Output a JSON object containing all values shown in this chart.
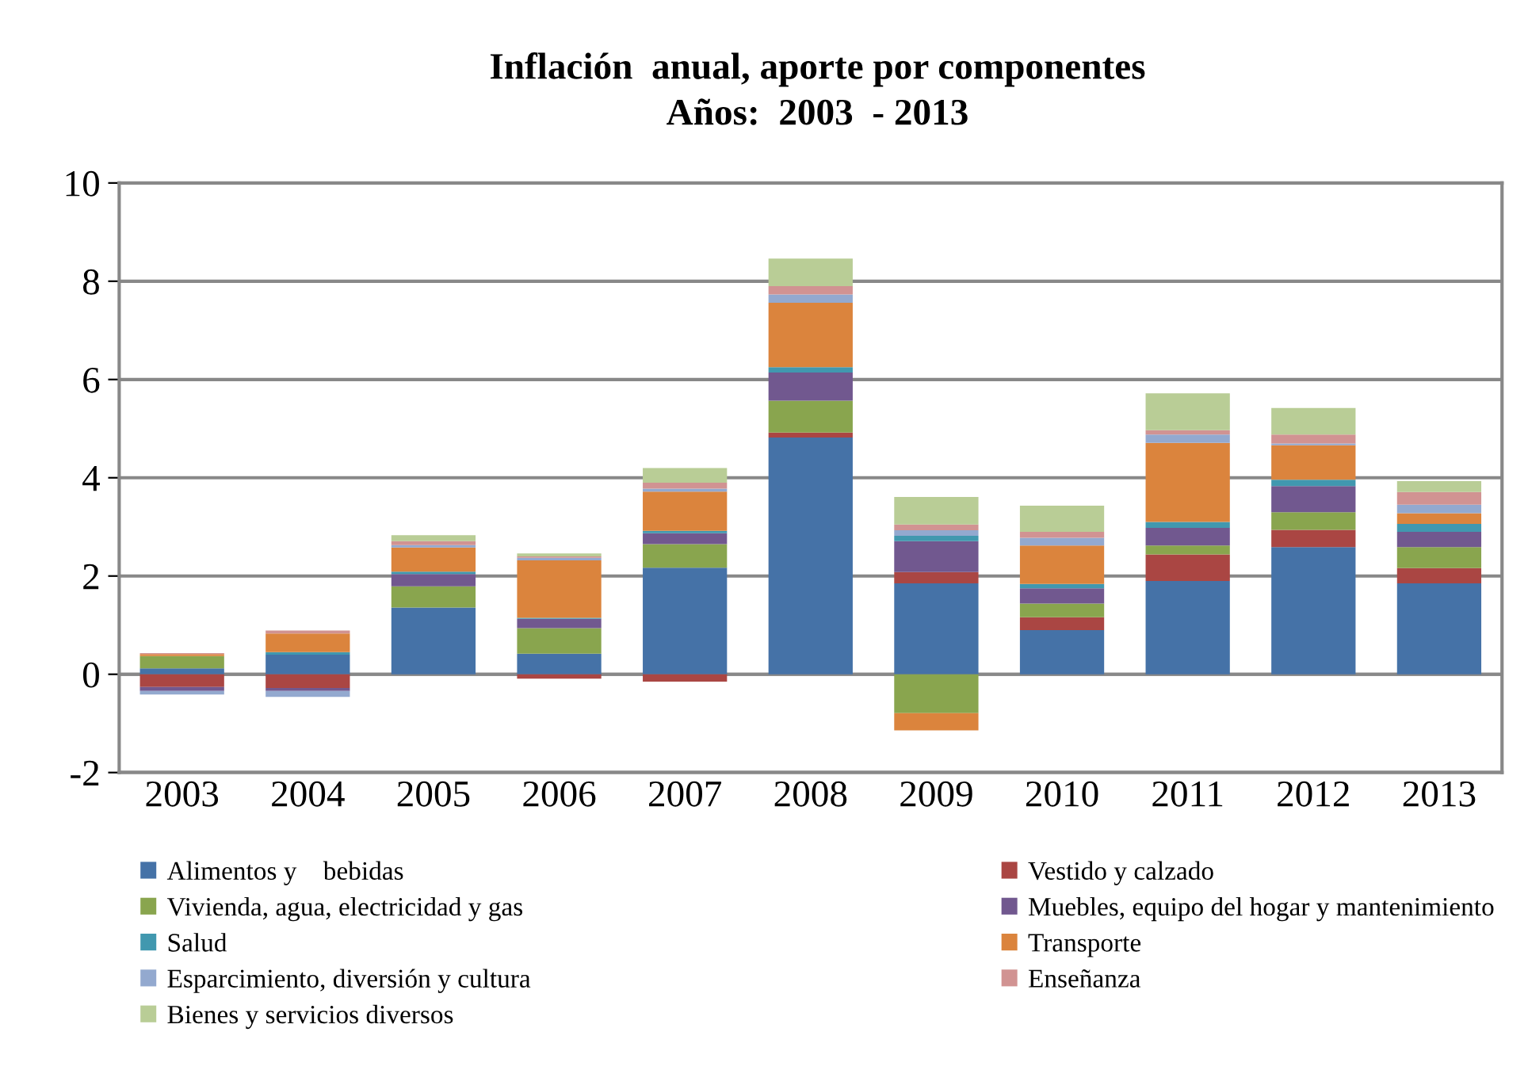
{
  "chart_data": {
    "type": "bar",
    "stacked": true,
    "title": "Inflación  anual, aporte por componentes",
    "subtitle": "Años:  2003  - 2013",
    "categories": [
      "2003",
      "2004",
      "2005",
      "2006",
      "2007",
      "2008",
      "2009",
      "2010",
      "2011",
      "2012",
      "2013"
    ],
    "series": [
      {
        "name": "Alimentos y    bebidas",
        "color": "#4572a7",
        "values": [
          0.12,
          0.4,
          1.36,
          0.42,
          2.17,
          4.82,
          1.85,
          0.9,
          1.9,
          2.59,
          1.85
        ]
      },
      {
        "name": "Vestido y calzado",
        "color": "#aa4643",
        "values": [
          -0.26,
          -0.28,
          0,
          -0.09,
          -0.15,
          0.1,
          0.23,
          0.26,
          0.54,
          0.35,
          0.31
        ]
      },
      {
        "name": "Vivienda, agua, electricidad y gas",
        "color": "#89a54e",
        "values": [
          0.25,
          0,
          0.43,
          0.52,
          0.48,
          0.65,
          -0.79,
          0.28,
          0.18,
          0.36,
          0.43
        ]
      },
      {
        "name": "Muebles, equipo del hogar y mantenimiento",
        "color": "#71588f",
        "values": [
          -0.08,
          -0.06,
          0.25,
          0.19,
          0.22,
          0.57,
          0.63,
          0.31,
          0.36,
          0.53,
          0.31
        ]
      },
      {
        "name": "Salud",
        "color": "#4198af",
        "values": [
          0,
          0.05,
          0.05,
          0.02,
          0.05,
          0.11,
          0.11,
          0.09,
          0.12,
          0.13,
          0.16
        ]
      },
      {
        "name": "Transporte",
        "color": "#db843d",
        "values": [
          0.04,
          0.38,
          0.49,
          1.17,
          0.8,
          1.31,
          -0.35,
          0.78,
          1.61,
          0.7,
          0.22
        ]
      },
      {
        "name": "Esparcimiento, diversión y cultura",
        "color": "#93a9cf",
        "values": [
          -0.07,
          -0.12,
          0.05,
          0.05,
          0.06,
          0.17,
          0.11,
          0.16,
          0.17,
          0.04,
          0.17
        ]
      },
      {
        "name": "Enseñanza",
        "color": "#d19392",
        "values": [
          0.02,
          0.06,
          0.08,
          0.03,
          0.12,
          0.17,
          0.12,
          0.12,
          0.09,
          0.18,
          0.26
        ]
      },
      {
        "name": "Bienes y servicios diversos",
        "color": "#b9cd96",
        "values": [
          0,
          0,
          0.12,
          0.06,
          0.3,
          0.56,
          0.56,
          0.53,
          0.75,
          0.54,
          0.22
        ]
      }
    ],
    "ylim": [
      -2,
      10
    ],
    "yticks": [
      -2,
      0,
      2,
      4,
      6,
      8,
      10
    ],
    "grid": "y",
    "legend": "bottom"
  }
}
